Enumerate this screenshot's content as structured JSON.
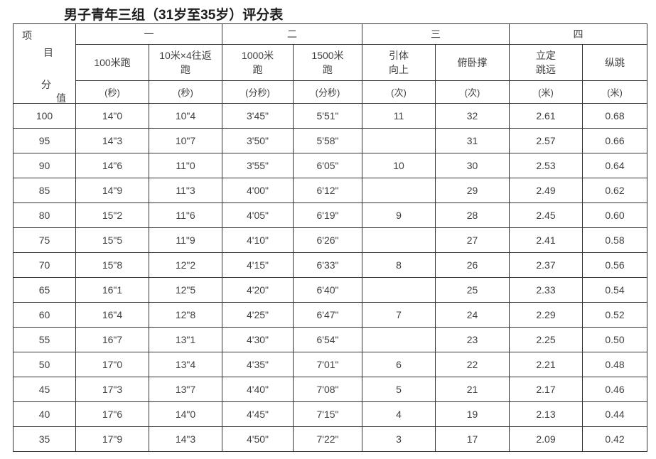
{
  "title": "男子青年三组（31岁至35岁）评分表",
  "table": {
    "corner_chars": [
      "项",
      "目",
      "分",
      "值"
    ],
    "groups": [
      "一",
      "二",
      "三",
      "四"
    ],
    "columns": [
      {
        "name": "100米跑",
        "unit": "(秒)"
      },
      {
        "name": "10米×4往返\n跑",
        "unit": "(秒)"
      },
      {
        "name": "1000米\n跑",
        "unit": "(分秒)"
      },
      {
        "name": "1500米\n跑",
        "unit": "(分秒)"
      },
      {
        "name": "引体\n向上",
        "unit": "(次)"
      },
      {
        "name": "俯卧撑",
        "unit": "(次)"
      },
      {
        "name": "立定\n跳远",
        "unit": "(米)"
      },
      {
        "name": "纵跳",
        "unit": "(米)"
      }
    ],
    "rows": [
      {
        "score": "100",
        "values": [
          "14\"0",
          "10\"4",
          "3'45\"",
          "5'51\"",
          "11",
          "32",
          "2.61",
          "0.68"
        ]
      },
      {
        "score": "95",
        "values": [
          "14\"3",
          "10\"7",
          "3'50\"",
          "5'58\"",
          "",
          "31",
          "2.57",
          "0.66"
        ]
      },
      {
        "score": "90",
        "values": [
          "14\"6",
          "11\"0",
          "3'55\"",
          "6'05\"",
          "10",
          "30",
          "2.53",
          "0.64"
        ]
      },
      {
        "score": "85",
        "values": [
          "14\"9",
          "11\"3",
          "4'00\"",
          "6'12\"",
          "",
          "29",
          "2.49",
          "0.62"
        ]
      },
      {
        "score": "80",
        "values": [
          "15\"2",
          "11\"6",
          "4'05\"",
          "6'19\"",
          "9",
          "28",
          "2.45",
          "0.60"
        ]
      },
      {
        "score": "75",
        "values": [
          "15\"5",
          "11\"9",
          "4'10\"",
          "6'26\"",
          "",
          "27",
          "2.41",
          "0.58"
        ]
      },
      {
        "score": "70",
        "values": [
          "15\"8",
          "12\"2",
          "4'15\"",
          "6'33\"",
          "8",
          "26",
          "2.37",
          "0.56"
        ]
      },
      {
        "score": "65",
        "values": [
          "16\"1",
          "12\"5",
          "4'20\"",
          "6'40\"",
          "",
          "25",
          "2.33",
          "0.54"
        ]
      },
      {
        "score": "60",
        "values": [
          "16\"4",
          "12\"8",
          "4'25\"",
          "6'47\"",
          "7",
          "24",
          "2.29",
          "0.52"
        ]
      },
      {
        "score": "55",
        "values": [
          "16\"7",
          "13\"1",
          "4'30\"",
          "6'54\"",
          "",
          "23",
          "2.25",
          "0.50"
        ]
      },
      {
        "score": "50",
        "values": [
          "17\"0",
          "13\"4",
          "4'35\"",
          "7'01\"",
          "6",
          "22",
          "2.21",
          "0.48"
        ]
      },
      {
        "score": "45",
        "values": [
          "17\"3",
          "13\"7",
          "4'40\"",
          "7'08\"",
          "5",
          "21",
          "2.17",
          "0.46"
        ]
      },
      {
        "score": "40",
        "values": [
          "17\"6",
          "14\"0",
          "4'45\"",
          "7'15\"",
          "4",
          "19",
          "2.13",
          "0.44"
        ]
      },
      {
        "score": "35",
        "values": [
          "17\"9",
          "14\"3",
          "4'50\"",
          "7'22\"",
          "3",
          "17",
          "2.09",
          "0.42"
        ]
      }
    ]
  }
}
